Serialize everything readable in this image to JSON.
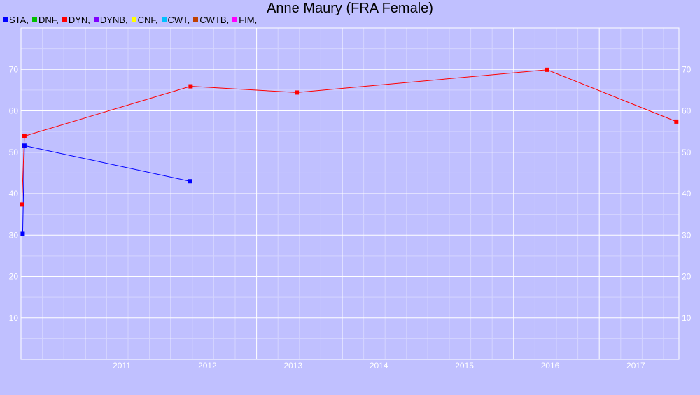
{
  "chart_data": {
    "type": "line",
    "title": "Anne Maury (FRA Female)",
    "xlabel": "",
    "ylabel": "",
    "legend_position": "top-left",
    "grid": true,
    "legend": [
      {
        "name": "STA,",
        "color": "#0000ff"
      },
      {
        "name": "DNF,",
        "color": "#00c000"
      },
      {
        "name": "DYN,",
        "color": "#ff0000"
      },
      {
        "name": "DYNB,",
        "color": "#8000ff"
      },
      {
        "name": "CNF,",
        "color": "#ffff00"
      },
      {
        "name": "CWT,",
        "color": "#00c0ff"
      },
      {
        "name": "CWTB,",
        "color": "#c04000"
      },
      {
        "name": "FIM,",
        "color": "#ff00ff"
      }
    ],
    "x_ticks": [
      "2011",
      "2012",
      "2013",
      "2014",
      "2015",
      "2016",
      "2017"
    ],
    "y_ticks": [
      10,
      20,
      30,
      40,
      50,
      60,
      70
    ],
    "xlim": [
      2010.25,
      2017.93
    ],
    "ylim": [
      0,
      80
    ],
    "series": [
      {
        "name": "STA",
        "color": "#0000ff",
        "points": [
          {
            "x": 2010.27,
            "y": 30.3
          },
          {
            "x": 2010.29,
            "y": 51.6
          },
          {
            "x": 2012.22,
            "y": 43.0
          }
        ]
      },
      {
        "name": "DYN",
        "color": "#ff0000",
        "points": [
          {
            "x": 2010.26,
            "y": 37.4
          },
          {
            "x": 2010.29,
            "y": 53.9
          },
          {
            "x": 2012.23,
            "y": 65.9
          },
          {
            "x": 2013.47,
            "y": 64.4
          },
          {
            "x": 2016.39,
            "y": 69.9
          },
          {
            "x": 2017.9,
            "y": 57.4
          }
        ]
      }
    ]
  }
}
